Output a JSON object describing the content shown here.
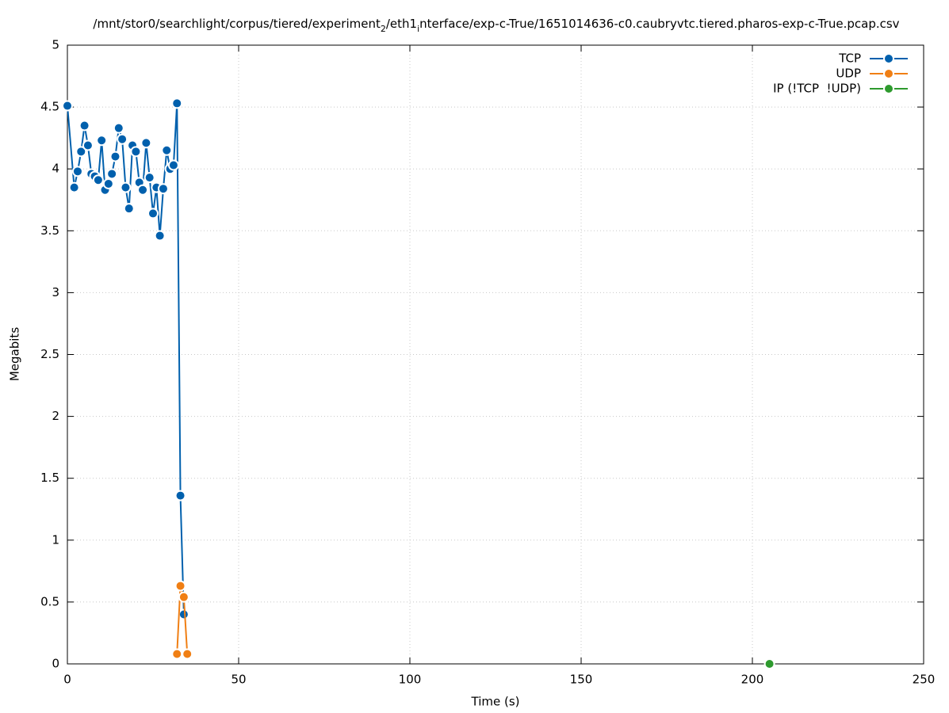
{
  "chart_data": {
    "type": "line",
    "title": [
      {
        "text": "/mnt/stor0/searchlight/corpus/tiered/experiment"
      },
      {
        "text": "2",
        "sub": true
      },
      {
        "text": "/eth1"
      },
      {
        "text": "i",
        "sub": true
      },
      {
        "text": "nterface/exp-c-True/1651014636-c0.caubryvtc.tiered.pharos-exp-c-True.pcap.csv"
      }
    ],
    "xlabel": "Time (s)",
    "ylabel": "Megabits",
    "series": [
      {
        "name": "TCP",
        "color": "#0060ad",
        "x": [
          0,
          2,
          3,
          4,
          5,
          6,
          7,
          8,
          9,
          10,
          11,
          12,
          13,
          14,
          15,
          16,
          17,
          18,
          19,
          20,
          21,
          22,
          23,
          24,
          25,
          26,
          27,
          28,
          29,
          30,
          31,
          32,
          33,
          34
        ],
        "values": [
          4.51,
          3.85,
          3.98,
          4.14,
          4.35,
          4.19,
          3.96,
          3.94,
          3.91,
          4.23,
          3.83,
          3.88,
          3.96,
          4.1,
          4.33,
          4.24,
          3.85,
          3.68,
          4.19,
          4.14,
          3.89,
          3.83,
          4.21,
          3.93,
          3.64,
          3.85,
          3.46,
          3.84,
          4.15,
          4.0,
          4.03,
          4.53,
          1.36,
          0.4
        ]
      },
      {
        "name": "UDP",
        "color": "#f07f14",
        "x": [
          32,
          33,
          34,
          35
        ],
        "values": [
          0.08,
          0.63,
          0.54,
          0.08
        ]
      },
      {
        "name": "IP (!TCP  !UDP)",
        "color": "#2e9a2e",
        "x": [
          205
        ],
        "values": [
          0
        ]
      }
    ],
    "xlim": [
      0,
      250
    ],
    "xticks": [
      0,
      50,
      100,
      150,
      200,
      250
    ],
    "ylim": [
      0,
      5
    ],
    "yticks": [
      0,
      0.5,
      1,
      1.5,
      2,
      2.5,
      3,
      3.5,
      4,
      4.5,
      5
    ],
    "grid": true,
    "legend": "top-right"
  }
}
